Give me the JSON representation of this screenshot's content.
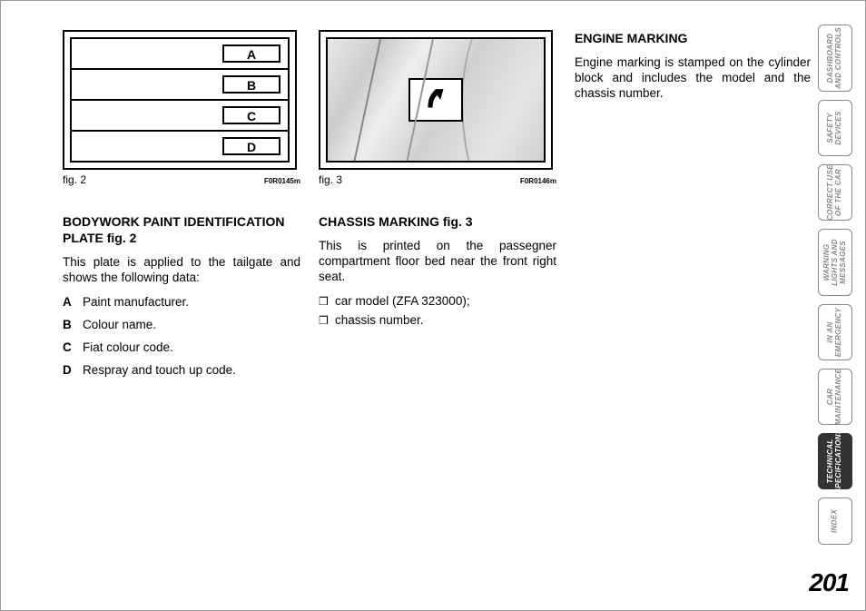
{
  "fig2": {
    "caption": "fig. 2",
    "code": "F0R0145m",
    "labels": [
      "A",
      "B",
      "C",
      "D"
    ]
  },
  "fig3": {
    "caption": "fig. 3",
    "code": "F0R0146m"
  },
  "section1": {
    "heading": "BODYWORK PAINT IDENTIFICATION PLATE fig. 2",
    "intro": "This plate is applied to the tailgate and shows the following data:",
    "items": [
      {
        "k": "A",
        "v": "Paint manufacturer."
      },
      {
        "k": "B",
        "v": "Colour name."
      },
      {
        "k": "C",
        "v": "Fiat colour code."
      },
      {
        "k": "D",
        "v": "Respray and touch up code."
      }
    ]
  },
  "section2": {
    "heading": "CHASSIS MARKING fig. 3",
    "intro": "This is printed on the passegner compartment floor bed near the front right seat.",
    "bullets": [
      "car model (ZFA 323000);",
      "chassis number."
    ]
  },
  "section3": {
    "heading": "ENGINE MARKING",
    "body": "Engine marking is stamped on the cylinder block and includes the model and the chassis number."
  },
  "tabs": [
    {
      "label": "DASHBOARD\nAND CONTROLS",
      "active": false,
      "h": ""
    },
    {
      "label": "SAFETY\nDEVICES",
      "active": false,
      "h": "h62"
    },
    {
      "label": "CORRECT USE\nOF THE CAR",
      "active": false,
      "h": "h62"
    },
    {
      "label": "WARNING\nLIGHTS AND\nMESSAGES",
      "active": false,
      "h": ""
    },
    {
      "label": "IN AN\nEMERGENCY",
      "active": false,
      "h": "h62"
    },
    {
      "label": "CAR\nMAINTENANCE",
      "active": false,
      "h": "h62"
    },
    {
      "label": "TECHNICAL\nSPECIFICATIONS",
      "active": true,
      "h": "h62"
    },
    {
      "label": "INDEX",
      "active": false,
      "h": "h52"
    }
  ],
  "pageNumber": "201"
}
